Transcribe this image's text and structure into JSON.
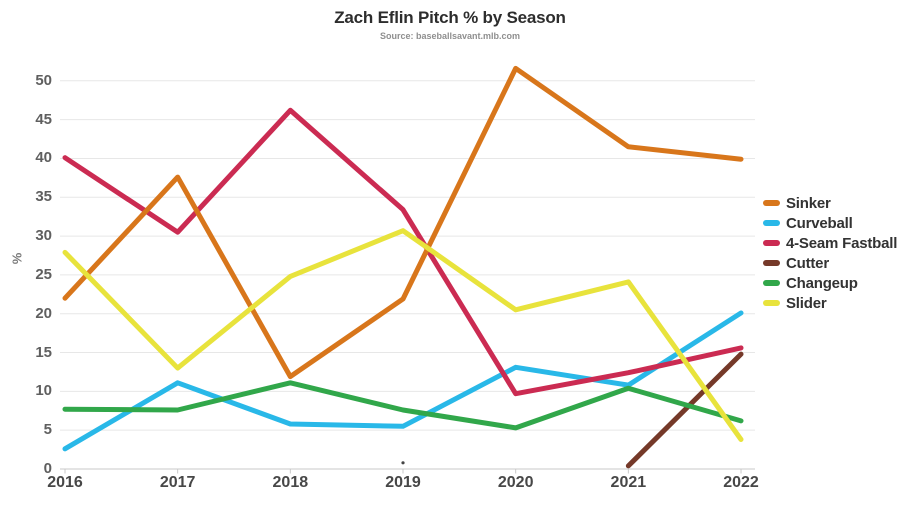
{
  "title": "Zach Eflin Pitch % by Season",
  "subtitle": "Source: baseballsavant.mlb.com",
  "chart_data": {
    "type": "line",
    "title": "Zach Eflin Pitch % by Season",
    "subtitle": "Source: baseballsavant.mlb.com",
    "xlabel": "",
    "ylabel": "%",
    "categories": [
      "2016",
      "2017",
      "2018",
      "2019",
      "2020",
      "2021",
      "2022"
    ],
    "yticks": [
      0,
      5,
      10,
      15,
      20,
      25,
      30,
      35,
      40,
      45,
      50
    ],
    "ylim": [
      0,
      52
    ],
    "grid": true,
    "legend_position": "right",
    "series": [
      {
        "name": "Sinker",
        "color": "#D8761B",
        "values": [
          22.0,
          37.6,
          11.9,
          21.9,
          51.6,
          41.5,
          39.9
        ]
      },
      {
        "name": "Curveball",
        "color": "#29B8E8",
        "values": [
          2.6,
          11.1,
          5.8,
          5.5,
          13.1,
          10.8,
          20.1
        ]
      },
      {
        "name": "4-Seam Fastball",
        "color": "#CB2B52",
        "values": [
          40.1,
          30.5,
          46.2,
          33.4,
          9.7,
          12.4,
          15.6
        ]
      },
      {
        "name": "Cutter",
        "color": "#753929",
        "values": [
          null,
          null,
          null,
          null,
          null,
          0.4,
          14.8
        ]
      },
      {
        "name": "Changeup",
        "color": "#31A74A",
        "values": [
          7.7,
          7.6,
          11.1,
          7.6,
          5.3,
          10.4,
          6.2
        ]
      },
      {
        "name": "Slider",
        "color": "#E8E33C",
        "values": [
          27.9,
          13.0,
          24.8,
          30.7,
          20.5,
          24.1,
          3.8
        ]
      }
    ],
    "stray_point": {
      "category": "2019",
      "value": 0.8
    },
    "colors": {
      "gridline": "#e7e7e7",
      "axis_line": "#c9c9c9",
      "y_tick_label": "#5f5f5f",
      "x_tick_label": "#474747",
      "title": "#2d2d2d",
      "source": "#8f8f8f"
    }
  }
}
